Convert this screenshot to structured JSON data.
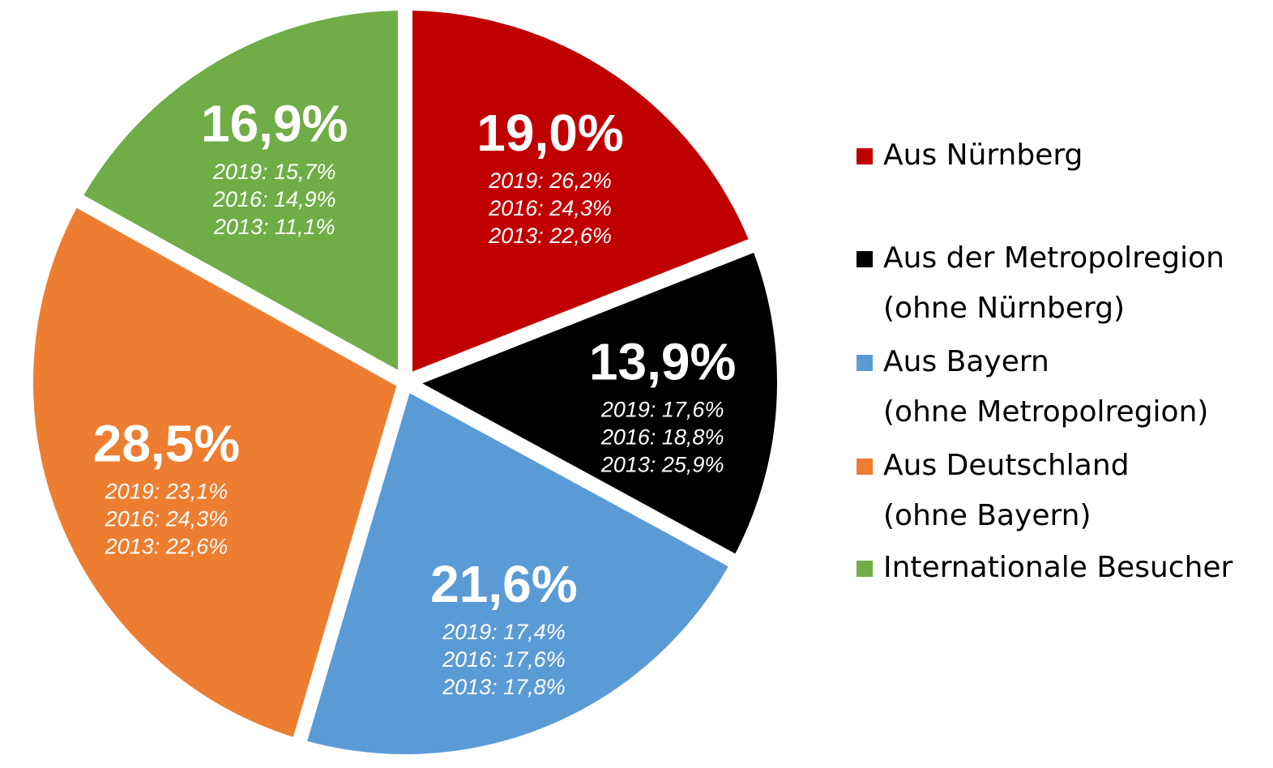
{
  "chart_data": {
    "type": "pie",
    "categories": [
      "Aus Nürnberg",
      "Aus der Metropolregion\n(ohne Nürnberg)",
      "Aus Bayern\n(ohne Metropolregion)",
      "Aus Deutschland\n(ohne Bayern)",
      "Internationale Besucher"
    ],
    "values": [
      19.0,
      13.9,
      21.6,
      28.5,
      16.9
    ],
    "value_labels": [
      "19,0%",
      "13,9%",
      "21,6%",
      "28,5%",
      "16,9%"
    ],
    "colors": [
      "#c00000",
      "#000000",
      "#5b9bd5",
      "#ed7d31",
      "#70ad47"
    ],
    "annotations": [
      [
        "2019: 26,2%",
        "2016: 24,3%",
        "2013: 22,6%"
      ],
      [
        "2019: 17,6%",
        "2016: 18,8%",
        "2013: 25,9%"
      ],
      [
        "2019: 17,4%",
        "2016: 17,6%",
        "2013: 17,8%"
      ],
      [
        "2019: 23,1%",
        "2016: 24,3%",
        "2013: 22,6%"
      ],
      [
        "2019: 15,7%",
        "2016: 14,9%",
        "2013: 11,1%"
      ]
    ],
    "legend": "right"
  }
}
